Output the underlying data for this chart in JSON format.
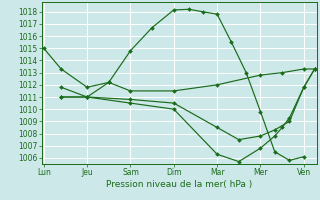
{
  "background_color": "#cce8e8",
  "grid_color": "#ffffff",
  "line_color": "#1a6b1a",
  "title": "Pression niveau de la mer( hPa )",
  "ylim": [
    1005.5,
    1018.8
  ],
  "yticks": [
    1006,
    1007,
    1008,
    1009,
    1010,
    1011,
    1012,
    1013,
    1014,
    1015,
    1016,
    1017,
    1018
  ],
  "x_labels": [
    "Lun",
    "Jeu",
    "Sam",
    "Dim",
    "Mar",
    "Mer",
    "Ven"
  ],
  "x_positions": [
    0,
    1,
    2,
    3,
    4,
    5,
    6
  ],
  "xlim": [
    -0.05,
    6.3
  ],
  "series": [
    {
      "x": [
        0.0,
        0.4,
        1.0,
        1.5,
        2.0,
        2.5,
        3.0,
        3.35,
        3.67,
        4.0,
        4.33,
        4.67,
        5.0,
        5.33,
        5.67,
        6.0
      ],
      "y": [
        1015.0,
        1013.3,
        1011.8,
        1012.2,
        1014.8,
        1016.7,
        1018.15,
        1018.2,
        1018.0,
        1017.8,
        1015.5,
        1013.0,
        1009.8,
        1006.5,
        1005.8,
        1006.1
      ]
    },
    {
      "x": [
        0.4,
        1.0,
        1.5,
        2.0,
        3.0,
        4.0,
        5.0,
        5.5,
        6.0,
        6.25
      ],
      "y": [
        1011.8,
        1011.0,
        1012.2,
        1011.5,
        1011.5,
        1012.0,
        1012.8,
        1013.0,
        1013.3,
        1013.3
      ]
    },
    {
      "x": [
        0.4,
        1.0,
        2.0,
        3.0,
        4.0,
        4.5,
        5.0,
        5.33,
        5.67,
        6.0,
        6.25
      ],
      "y": [
        1011.0,
        1011.0,
        1010.8,
        1010.5,
        1008.5,
        1007.5,
        1007.8,
        1008.3,
        1009.0,
        1011.8,
        1013.3
      ]
    },
    {
      "x": [
        0.4,
        1.0,
        2.0,
        3.0,
        4.0,
        4.5,
        5.0,
        5.33,
        5.5,
        5.67,
        6.0,
        6.25
      ],
      "y": [
        1011.0,
        1011.0,
        1010.5,
        1010.0,
        1006.3,
        1005.7,
        1006.8,
        1007.8,
        1008.5,
        1009.3,
        1011.8,
        1013.3
      ]
    }
  ]
}
